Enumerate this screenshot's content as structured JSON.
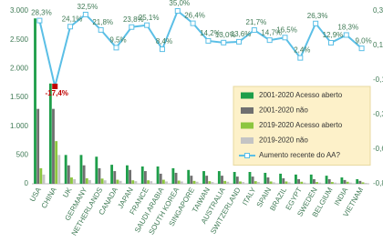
{
  "chart_data": {
    "type": "bar_line",
    "categories": [
      "USA",
      "CHINA",
      "UK",
      "GERMANY",
      "NETHERLANDS",
      "CANADA",
      "JAPAN",
      "FRANCE",
      "SAUDI ARABIA",
      "SOUTH KOREA",
      "SINGAPORE",
      "TAIWAN",
      "AUSTRALIA",
      "SWITZERLAND",
      "ITALY",
      "SPAIN",
      "BRAZIL",
      "EGYPT",
      "SWEDEN",
      "BELGIUM",
      "INDIA",
      "VIETNAM"
    ],
    "series": [
      {
        "name": "2001-2020 Acesso aberto",
        "color": "#1e9e4a",
        "values": [
          2870,
          1740,
          500,
          500,
          470,
          330,
          320,
          300,
          300,
          270,
          240,
          220,
          220,
          205,
          205,
          190,
          175,
          160,
          160,
          140,
          110,
          80
        ]
      },
      {
        "name": "2001-2020 não",
        "color": "#707070",
        "values": [
          1300,
          1300,
          320,
          320,
          270,
          220,
          240,
          220,
          175,
          190,
          140,
          140,
          140,
          125,
          125,
          110,
          95,
          80,
          80,
          80,
          65,
          50
        ]
      },
      {
        "name": "2019-2020 Acesso aberto",
        "color": "#8cc63f",
        "values": [
          270,
          740,
          110,
          95,
          90,
          70,
          60,
          60,
          70,
          55,
          50,
          45,
          50,
          40,
          45,
          40,
          40,
          35,
          30,
          30,
          35,
          25
        ]
      },
      {
        "name": "2019-2020 não",
        "color": "#c4c4c4",
        "values": [
          160,
          500,
          80,
          65,
          60,
          50,
          45,
          45,
          40,
          40,
          35,
          30,
          35,
          30,
          30,
          25,
          25,
          20,
          20,
          20,
          20,
          15
        ]
      },
      {
        "name": "Aumento recente do AA?",
        "color": "#5bbfe6",
        "axis": "y2",
        "values": [
          0.283,
          -0.174,
          0.241,
          0.325,
          0.218,
          0.095,
          0.238,
          0.251,
          0.084,
          0.35,
          0.264,
          0.142,
          0.13,
          0.136,
          0.217,
          0.147,
          0.165,
          0.024,
          0.263,
          0.129,
          0.183,
          0.09
        ],
        "value_labels": [
          "28,3%",
          "-17,4%",
          "24,1%",
          "32,5%",
          "21,8%",
          "9,5%",
          "23,8%",
          "25,1%",
          "8,4%",
          "35,0%",
          "26,4%",
          "14,2%",
          "13,0%",
          "13,6%",
          "21,7%",
          "14,7%",
          "16,5%",
          "2,4%",
          "26,3%",
          "12,9%",
          "18,3%",
          "9,0%"
        ]
      }
    ],
    "negative_color": "#c00000",
    "ylim": [
      0,
      3000
    ],
    "yticks": [
      0,
      500,
      {
        "value": 1000,
        "label": "1.000"
      },
      {
        "value": 1500,
        "label": "1.500"
      },
      {
        "value": 2000,
        "label": "2.000"
      },
      {
        "value": 2500,
        "label": "2.500"
      },
      {
        "value": 3000,
        "label": "3.000"
      }
    ],
    "y2lim": [
      -0.85,
      0.35
    ],
    "y2ticks": [
      {
        "value": -0.85,
        "label": "-0,85"
      },
      {
        "value": -0.61,
        "label": "-0,61"
      },
      {
        "value": -0.37,
        "label": "-0,37"
      },
      {
        "value": -0.13,
        "label": "-0,13"
      },
      {
        "value": 0.11,
        "label": "0,11"
      },
      {
        "value": 0.35,
        "label": "0,35"
      }
    ],
    "legend": "right"
  }
}
